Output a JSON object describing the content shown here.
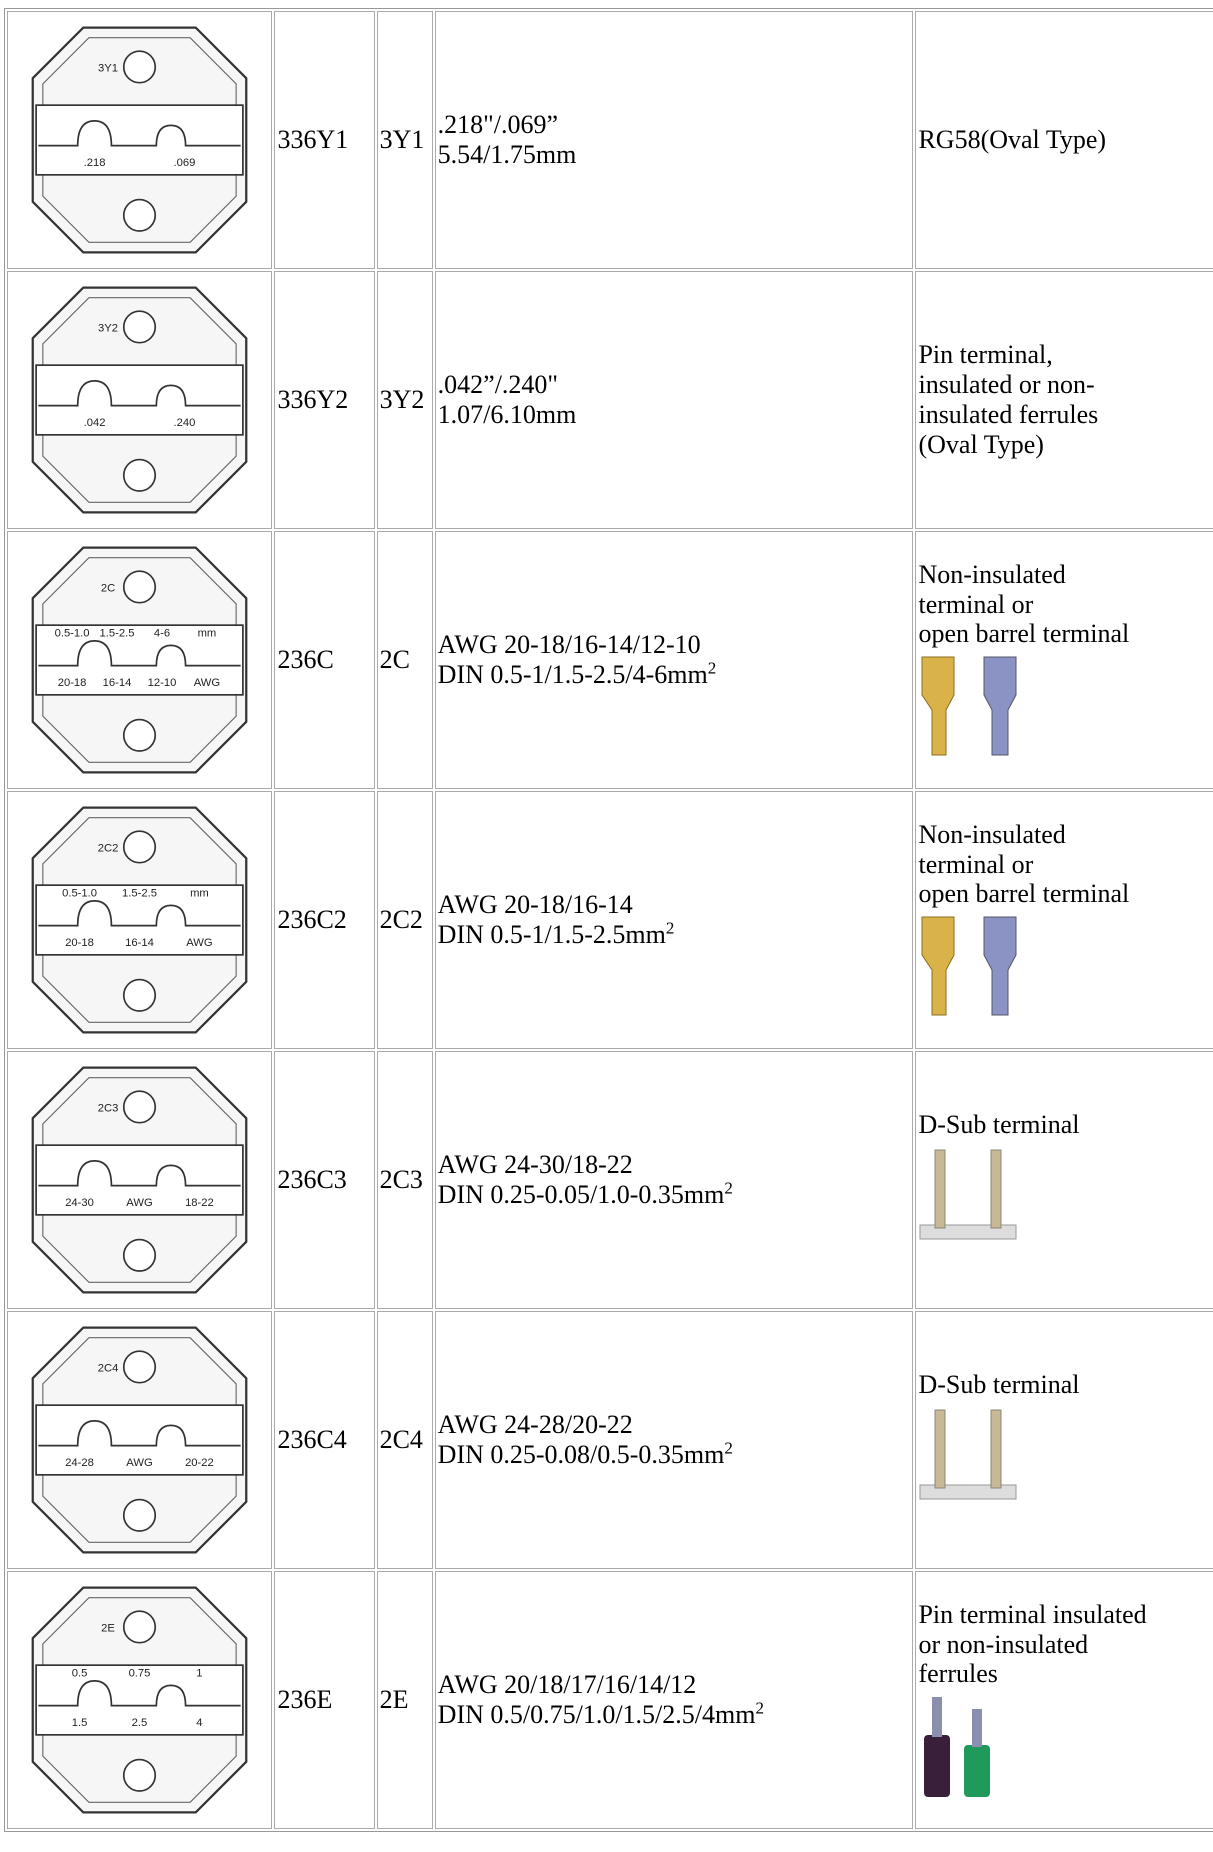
{
  "table": {
    "rows": [
      {
        "die": [
          "3Y1",
          ".218",
          ".069"
        ],
        "model": "336Y1",
        "code": "3Y1",
        "spec": [
          ".218\"/.069”",
          "5.54/1.75mm"
        ],
        "description": [
          "RG58(Oval Type)"
        ]
      },
      {
        "die": [
          "3Y2",
          ".042",
          ".240"
        ],
        "model": "336Y2",
        "code": "3Y2",
        "spec": [
          ".042”/.240\"",
          "1.07/6.10mm"
        ],
        "description": [
          "Pin terminal,",
          "insulated or non-",
          "insulated ferrules",
          "(Oval Type)"
        ]
      },
      {
        "die": [
          "2C",
          "0.5-1.0",
          "1.5-2.5",
          "4-6",
          "mm",
          "20-18",
          "16-14",
          "12-10",
          "AWG"
        ],
        "model": "236C",
        "code": "2C",
        "spec": [
          "AWG 20-18/16-14/12-10",
          "DIN 0.5-1/1.5-2.5/4-6mm"
        ],
        "sup": "2",
        "description": [
          "Non-insulated",
          "terminal or",
          "open barrel terminal"
        ]
      },
      {
        "die": [
          "2C2",
          "0.5-1.0",
          "1.5-2.5",
          "mm",
          "20-18",
          "16-14",
          "AWG"
        ],
        "model": "236C2",
        "code": "2C2",
        "spec": [
          "AWG 20-18/16-14",
          "DIN 0.5-1/1.5-2.5mm"
        ],
        "sup": "2",
        "description": [
          "Non-insulated",
          "terminal or",
          "open barrel terminal"
        ]
      },
      {
        "die": [
          "2C3",
          "24-30",
          "AWG",
          "18-22"
        ],
        "model": "236C3",
        "code": "2C3",
        "spec": [
          "AWG 24-30/18-22",
          "DIN 0.25-0.05/1.0-0.35mm"
        ],
        "sup": "2",
        "description": [
          "D-Sub terminal"
        ]
      },
      {
        "die": [
          "2C4",
          "24-28",
          "AWG",
          "20-22"
        ],
        "model": "236C4",
        "code": "2C4",
        "spec": [
          "AWG 24-28/20-22",
          "DIN 0.25-0.08/0.5-0.35mm"
        ],
        "sup": "2",
        "description": [
          "D-Sub terminal"
        ]
      },
      {
        "die": [
          "2E",
          "0.5",
          "0.75",
          "1",
          "1.5",
          "2.5",
          "4"
        ],
        "model": "236E",
        "code": "2E",
        "spec": [
          "AWG 20/18/17/16/14/12",
          "DIN 0.5/0.75/1.0/1.5/2.5/4mm"
        ],
        "sup": "2",
        "description": [
          "Pin terminal insulated",
          "or non-insulated",
          "ferrules"
        ]
      }
    ]
  }
}
